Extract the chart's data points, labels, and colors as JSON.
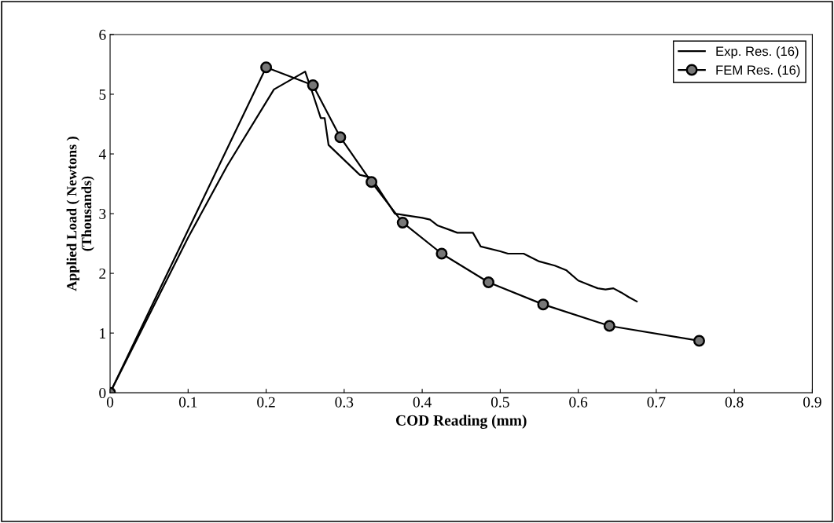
{
  "chart_data": {
    "type": "line",
    "xlabel": "COD Reading (mm)",
    "ylabel": "Applied Load ( Newtons )\n(Thousands)",
    "xlim": [
      0,
      0.9
    ],
    "xticks": [
      0,
      0.1,
      0.2,
      0.3,
      0.4,
      0.5,
      0.6,
      0.7,
      0.8,
      0.9
    ],
    "ylim": [
      0,
      6
    ],
    "yticks": [
      0,
      1,
      2,
      3,
      4,
      5,
      6
    ],
    "grid": false,
    "legend": "top right",
    "series": [
      {
        "name": "Exp. Res. (16)",
        "color": "#000000",
        "marker": "none",
        "x": [
          0,
          0.1,
          0.15,
          0.21,
          0.25,
          0.26,
          0.27,
          0.275,
          0.28,
          0.3,
          0.32,
          0.335,
          0.35,
          0.365,
          0.38,
          0.4,
          0.41,
          0.42,
          0.435,
          0.445,
          0.465,
          0.475,
          0.5,
          0.51,
          0.53,
          0.55,
          0.57,
          0.585,
          0.6,
          0.615,
          0.625,
          0.635,
          0.645,
          0.655,
          0.665,
          0.675
        ],
        "values": [
          0,
          2.6,
          3.8,
          5.08,
          5.38,
          5.0,
          4.6,
          4.6,
          4.15,
          3.9,
          3.65,
          3.6,
          3.3,
          3.0,
          2.97,
          2.93,
          2.9,
          2.8,
          2.73,
          2.68,
          2.68,
          2.45,
          2.37,
          2.33,
          2.33,
          2.2,
          2.13,
          2.05,
          1.88,
          1.8,
          1.75,
          1.73,
          1.75,
          1.68,
          1.6,
          1.53
        ]
      },
      {
        "name": "FEM Res. (16)",
        "color": "#000000",
        "marker": "circle",
        "x": [
          0,
          0.2,
          0.26,
          0.295,
          0.335,
          0.375,
          0.425,
          0.485,
          0.555,
          0.64,
          0.755
        ],
        "values": [
          0,
          5.45,
          5.15,
          4.28,
          3.53,
          2.85,
          2.33,
          1.85,
          1.48,
          1.12,
          0.87
        ]
      }
    ]
  }
}
